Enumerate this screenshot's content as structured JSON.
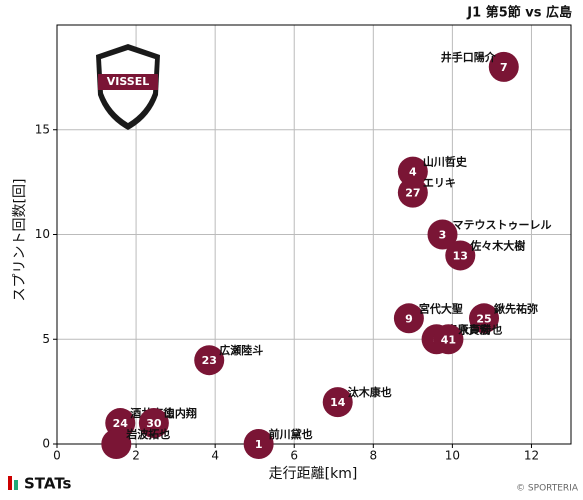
{
  "chart_data": {
    "type": "scatter",
    "title": "J1 第5節 vs 広島",
    "xlabel": "走行距離[km]",
    "ylabel": "スプリント回数[回]",
    "x": [
      11.3,
      9.0,
      9.0,
      9.75,
      10.2,
      8.9,
      10.8,
      9.6,
      9.9,
      3.85,
      7.1,
      1.6,
      2.45,
      5.1,
      1.5
    ],
    "values": [
      18,
      13,
      12,
      10,
      9,
      6,
      6,
      5,
      5,
      4,
      2,
      1,
      1,
      0,
      0
    ],
    "point_labels": [
      "井手口陽介",
      "山川哲史",
      "エリキ",
      "マテウストゥーレル",
      "佐々木大樹",
      "宮代大聖",
      "鍬先祐弥",
      "扇原貴宏",
      "永戸勝也",
      "広瀬陸斗",
      "汰木康也",
      "酒井高徳",
      "山内翔",
      "前川黛也",
      "岩波拓也"
    ],
    "numbers": [
      7,
      4,
      27,
      3,
      13,
      9,
      25,
      6,
      41,
      23,
      14,
      24,
      30,
      1,
      null
    ],
    "color": "#7a1535",
    "xlim": [
      0,
      13
    ],
    "ylim": [
      0,
      20
    ],
    "xticks": [
      0,
      2,
      4,
      6,
      8,
      10,
      12
    ],
    "yticks": [
      0,
      5,
      10,
      15
    ],
    "grid": true
  },
  "logo_text": "VISSEL",
  "brand": "STATs",
  "copyright": "© SPORTERIA"
}
